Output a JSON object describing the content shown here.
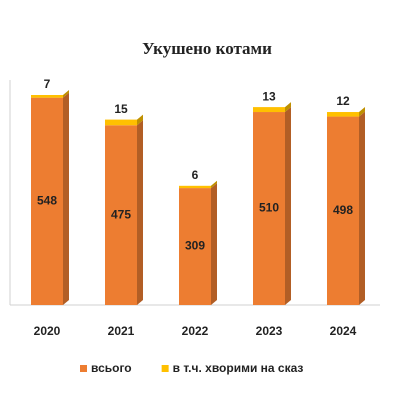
{
  "chart_data": {
    "type": "stacked-bar",
    "title": "Укушено котами",
    "categories": [
      "2020",
      "2021",
      "2022",
      "2023",
      "2024"
    ],
    "series": [
      {
        "name": "всього",
        "color": "#ed7d31",
        "values": [
          548,
          475,
          309,
          510,
          498
        ]
      },
      {
        "name": "в т.ч. хворими на сказ",
        "color": "#ffc000",
        "values": [
          7,
          15,
          6,
          13,
          12
        ]
      }
    ],
    "legend": "bottom"
  }
}
